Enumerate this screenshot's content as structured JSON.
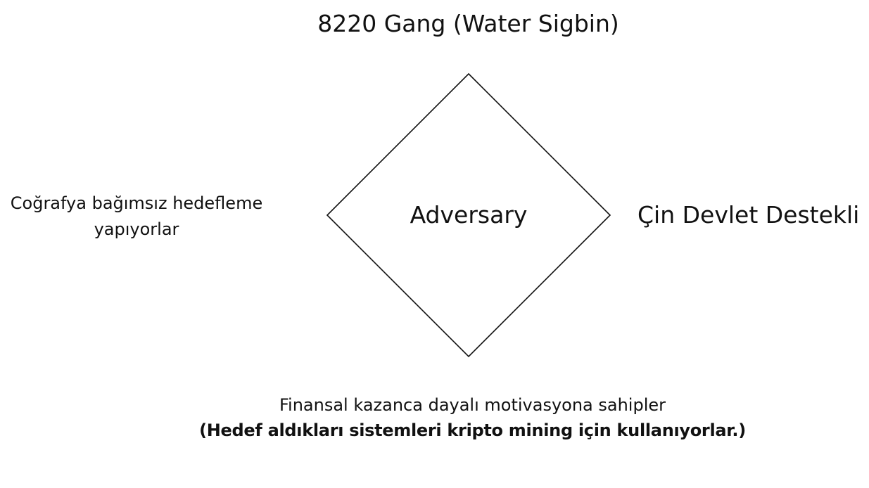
{
  "diagram": {
    "type": "diamond-model",
    "top": "8220 Gang (Water Sigbin)",
    "center": "Adversary",
    "left": {
      "line1": "Coğrafya bağımsız hedefleme",
      "line2": "yapıyorlar"
    },
    "right": "Çin Devlet Destekli",
    "bottom": {
      "line1": "Finansal kazanca dayalı motivasyona sahipler",
      "line2": "(Hedef aldıkları sistemleri kripto mining için kullanıyorlar.)"
    },
    "colors": {
      "stroke": "#111111",
      "text": "#111111",
      "background": "#ffffff"
    }
  }
}
